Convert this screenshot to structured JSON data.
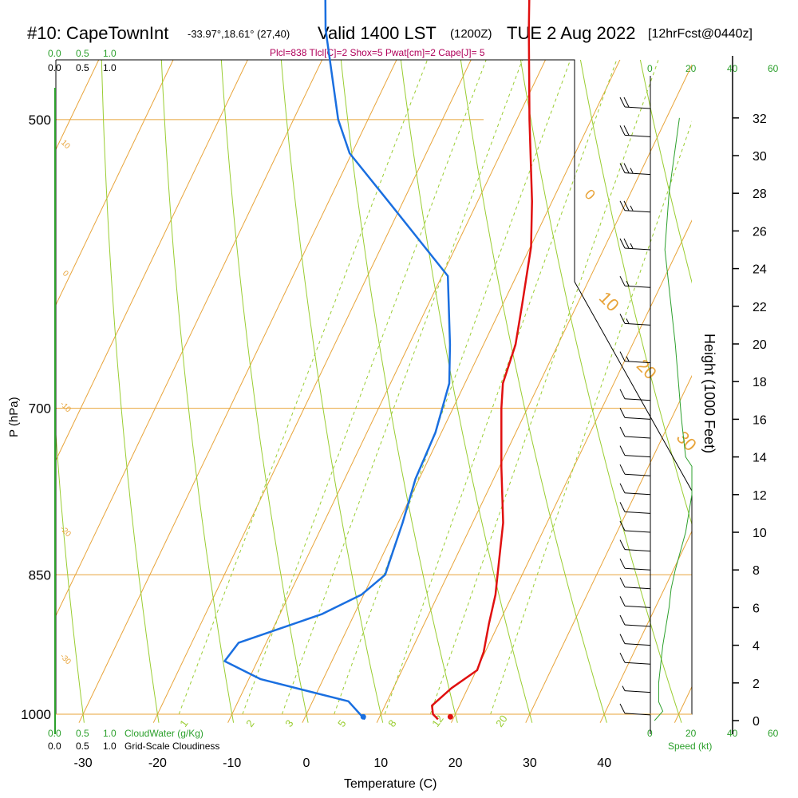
{
  "header": {
    "station": "#10: CapeTownInt",
    "location": "-33.97°,18.61° (27,40)",
    "valid": "Valid 1400 LST",
    "zulu": "(1200Z)",
    "date": "TUE 2 Aug 2022",
    "forecast": "[12hrFcst@0440z]",
    "indices": "Plcl=838 Tlcl[C]=2 Shox=5 Pwat[cm]=2 Cape[J]= 5"
  },
  "cloud_scales": {
    "green_top": [
      "0.0",
      "0.5",
      "1.0"
    ],
    "black_top": [
      "0.0",
      "0.5",
      "1.0"
    ],
    "green_bottom": [
      "0.0",
      "0.5",
      "1.0"
    ],
    "green_bottom_label": "CloudWater (g/Kg)",
    "black_bottom": [
      "0.0",
      "0.5",
      "1.0"
    ],
    "black_bottom_label": "Grid-Scale Cloudiness"
  },
  "wind_speed_axis": {
    "label": "Speed (kt)",
    "ticks": [
      "0",
      "20",
      "40",
      "60"
    ]
  },
  "colors": {
    "isotherm": "#e8a43a",
    "dry_adiabat": "#9acd32",
    "mixing_ratio": "#9acd32",
    "temperature": "#e01010",
    "dewpoint": "#1a6fe0",
    "cloud_green": "#2ca02c",
    "indices": "#b0005a"
  },
  "chart_data": {
    "type": "line",
    "subtype": "skew-T log-P sounding",
    "xlabel": "Temperature (C)",
    "ylabel": "P (hPa)",
    "y2label": "Height (1000 Feet)",
    "x_ticks": [
      -30,
      -20,
      -10,
      0,
      10,
      20,
      30,
      40
    ],
    "xlim": [
      -35,
      45
    ],
    "y_ticks_hpa": [
      250,
      300,
      400,
      500,
      700,
      850,
      1000
    ],
    "ylim_hpa": [
      1010,
      250
    ],
    "y2_ticks_kft": [
      0,
      2,
      4,
      6,
      8,
      10,
      12,
      14,
      16,
      18,
      20,
      22,
      24,
      26,
      28,
      30,
      32
    ],
    "grid": true,
    "isotherm_labels": [
      "10",
      "0",
      "-10",
      "-20",
      "-30",
      "0",
      "10",
      "20",
      "30"
    ],
    "mixing_ratio_labels": [
      "1",
      "2",
      "3",
      "5",
      "8",
      "12",
      "20"
    ],
    "series": [
      {
        "role": "temperature",
        "points": [
          {
            "p": 1006,
            "t": 18.0
          },
          {
            "p": 1000,
            "t": 17.0
          },
          {
            "p": 990,
            "t": 16.3
          },
          {
            "p": 970,
            "t": 17.8
          },
          {
            "p": 950,
            "t": 20.1
          },
          {
            "p": 930,
            "t": 19.8
          },
          {
            "p": 900,
            "t": 18.7
          },
          {
            "p": 870,
            "t": 17.7
          },
          {
            "p": 850,
            "t": 16.7
          },
          {
            "p": 800,
            "t": 14.1
          },
          {
            "p": 750,
            "t": 10.3
          },
          {
            "p": 700,
            "t": 6.5
          },
          {
            "p": 680,
            "t": 5.1
          },
          {
            "p": 650,
            "t": 4.3
          },
          {
            "p": 620,
            "t": 2.6
          },
          {
            "p": 580,
            "t": 0.1
          },
          {
            "p": 550,
            "t": -2.7
          },
          {
            "p": 500,
            "t": -8.3
          },
          {
            "p": 450,
            "t": -14.2
          },
          {
            "p": 400,
            "t": -20.5
          },
          {
            "p": 350,
            "t": -27.6
          },
          {
            "p": 300,
            "t": -36.0
          },
          {
            "p": 270,
            "t": -41.5
          }
        ]
      },
      {
        "role": "dewpoint",
        "points": [
          {
            "p": 1006,
            "t": 8.2
          },
          {
            "p": 1000,
            "t": 7.2
          },
          {
            "p": 985,
            "t": 4.8
          },
          {
            "p": 960,
            "t": -8.4
          },
          {
            "p": 940,
            "t": -14.4
          },
          {
            "p": 920,
            "t": -13.7
          },
          {
            "p": 890,
            "t": -4.4
          },
          {
            "p": 870,
            "t": -0.3
          },
          {
            "p": 850,
            "t": 1.6
          },
          {
            "p": 800,
            "t": 0.6
          },
          {
            "p": 760,
            "t": -0.5
          },
          {
            "p": 720,
            "t": -0.8
          },
          {
            "p": 680,
            "t": -2.1
          },
          {
            "p": 650,
            "t": -4.5
          },
          {
            "p": 600,
            "t": -9.2
          },
          {
            "p": 550,
            "t": -22.0
          },
          {
            "p": 520,
            "t": -30.3
          },
          {
            "p": 500,
            "t": -34.0
          },
          {
            "p": 450,
            "t": -41.5
          },
          {
            "p": 400,
            "t": -48.1
          },
          {
            "p": 370,
            "t": -53.0
          },
          {
            "p": 340,
            "t": -50.9
          },
          {
            "p": 320,
            "t": -46.8
          },
          {
            "p": 300,
            "t": -48.0
          },
          {
            "p": 270,
            "t": -54.0
          }
        ]
      }
    ],
    "surface_markers": [
      {
        "role": "temperature",
        "p": 1003,
        "t": 19.5
      },
      {
        "role": "dewpoint",
        "p": 1003,
        "t": 7.8
      }
    ],
    "wind_speed_profile": [
      {
        "kft": 0.0,
        "kt": 2
      },
      {
        "kft": 0.5,
        "kt": 6
      },
      {
        "kft": 1.0,
        "kt": 4
      },
      {
        "kft": 2.0,
        "kt": 4
      },
      {
        "kft": 4.0,
        "kt": 6
      },
      {
        "kft": 6.0,
        "kt": 9
      },
      {
        "kft": 7.0,
        "kt": 10
      },
      {
        "kft": 8.0,
        "kt": 12
      },
      {
        "kft": 10.0,
        "kt": 17
      },
      {
        "kft": 12.0,
        "kt": 20
      },
      {
        "kft": 13.5,
        "kt": 20
      },
      {
        "kft": 14.0,
        "kt": 17
      },
      {
        "kft": 16.0,
        "kt": 15
      },
      {
        "kft": 20.0,
        "kt": 12
      },
      {
        "kft": 25.0,
        "kt": 7
      },
      {
        "kft": 28.0,
        "kt": 9
      },
      {
        "kft": 32.0,
        "kt": 14
      }
    ],
    "wind_barbs": [
      {
        "kft": 0.3,
        "kt": 8,
        "dir": 270
      },
      {
        "kft": 1.5,
        "kt": 5,
        "dir": 180
      },
      {
        "kft": 3.0,
        "kt": 10,
        "dir": 270
      },
      {
        "kft": 4.0,
        "kt": 10,
        "dir": 270
      },
      {
        "kft": 5.0,
        "kt": 10,
        "dir": 270
      },
      {
        "kft": 6.0,
        "kt": 10,
        "dir": 270
      },
      {
        "kft": 7.0,
        "kt": 10,
        "dir": 270
      },
      {
        "kft": 8.0,
        "kt": 10,
        "dir": 270
      },
      {
        "kft": 9.0,
        "kt": 10,
        "dir": 270
      },
      {
        "kft": 10.0,
        "kt": 10,
        "dir": 270
      },
      {
        "kft": 11.0,
        "kt": 10,
        "dir": 270
      },
      {
        "kft": 12.0,
        "kt": 10,
        "dir": 270
      },
      {
        "kft": 13.0,
        "kt": 10,
        "dir": 270
      },
      {
        "kft": 14.0,
        "kt": 10,
        "dir": 270
      },
      {
        "kft": 15.0,
        "kt": 10,
        "dir": 270
      },
      {
        "kft": 16.0,
        "kt": 10,
        "dir": 270
      },
      {
        "kft": 17.0,
        "kt": 10,
        "dir": 270
      },
      {
        "kft": 19.0,
        "kt": 15,
        "dir": 270
      },
      {
        "kft": 21.0,
        "kt": 15,
        "dir": 270
      },
      {
        "kft": 23.0,
        "kt": 15,
        "dir": 270
      },
      {
        "kft": 25.0,
        "kt": 25,
        "dir": 270
      },
      {
        "kft": 27.0,
        "kt": 25,
        "dir": 270
      },
      {
        "kft": 29.0,
        "kt": 25,
        "dir": 270
      },
      {
        "kft": 31.0,
        "kt": 20,
        "dir": 270
      },
      {
        "kft": 32.5,
        "kt": 20,
        "dir": 270
      }
    ],
    "axis_labels_extra": [
      "P (hPa)",
      "Height (1000 Feet)"
    ]
  }
}
